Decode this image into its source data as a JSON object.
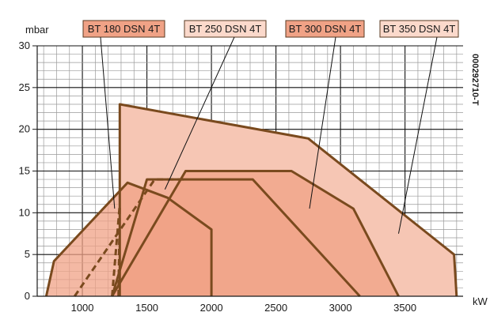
{
  "chart_data": {
    "type": "area",
    "title": "",
    "xlabel": "kW",
    "ylabel": "mbar",
    "xlim": [
      650,
      3950
    ],
    "ylim": [
      0,
      30
    ],
    "x_ticks": [
      "1000",
      "1500",
      "2000",
      "2500",
      "3000",
      "3500"
    ],
    "x_tick_values": [
      1000,
      1500,
      2000,
      2500,
      3000,
      3500
    ],
    "y_ticks": [
      "0",
      "5",
      "10",
      "15",
      "20",
      "25",
      "30"
    ],
    "y_tick_values": [
      0,
      5,
      10,
      15,
      20,
      25,
      30
    ],
    "grid": true,
    "document_code": "000292710-T",
    "colors": {
      "outline": "#7a4a1e",
      "fill_light": "#f6c6b4",
      "fill_mid": "#f0a286",
      "legend_fill_dark": "#f0a286",
      "legend_fill_light": "#fbd9cb",
      "grid": "#9a9a9a",
      "axis": "#1a1a1a"
    },
    "series": [
      {
        "name": "BT 180 DSN 4T",
        "legend_fill": "dark",
        "line_style": "solid",
        "points": [
          [
            720,
            0
          ],
          [
            780,
            4.2
          ],
          [
            1350,
            13.6
          ],
          [
            1660,
            11.8
          ],
          [
            2000,
            8.0
          ],
          [
            2000,
            0
          ]
        ],
        "leader_target": [
          1250,
          10.5
        ]
      },
      {
        "name": "BT 250 DSN 4T",
        "legend_fill": "light",
        "line_style": "dashed",
        "points": [
          [
            940,
            0
          ],
          [
            1560,
            14.0
          ],
          [
            1815,
            14.0
          ]
        ],
        "leader_target": [
          1640,
          12.8
        ]
      },
      {
        "name": "BT 300 DSN 4T",
        "legend_fill": "dark",
        "line_style": "solid",
        "points": [
          [
            1230,
            0
          ],
          [
            1500,
            14.0
          ],
          [
            2320,
            14.0
          ],
          [
            3150,
            0
          ]
        ],
        "leader_target": [
          2760,
          10.5
        ]
      },
      {
        "name": "BT 350 DSN 4T",
        "legend_fill": "light",
        "line_style": "solid",
        "points": [
          [
            1290,
            0
          ],
          [
            1290,
            23.0
          ],
          [
            2750,
            18.9
          ],
          [
            3880,
            5.0
          ],
          [
            3900,
            0
          ]
        ],
        "leader_target": [
          3450,
          7.5
        ]
      },
      {
        "name": "BT 350 DSN 4T inner",
        "legend_fill": "mid",
        "line_style": "solid",
        "points": [
          [
            1230,
            0
          ],
          [
            1800,
            15.0
          ],
          [
            2620,
            15.0
          ],
          [
            3100,
            10.5
          ],
          [
            3450,
            0
          ]
        ]
      },
      {
        "name": "BT 180 DSN 4T dashed limit",
        "line_style": "dashed",
        "points": [
          [
            1230,
            0
          ],
          [
            1290,
            11.0
          ]
        ]
      },
      {
        "name": "BT 250 DSN 4T dashed limit",
        "line_style": "dashed",
        "points": [
          [
            1280,
            0
          ],
          [
            1290,
            11.0
          ]
        ]
      }
    ],
    "legend": [
      "BT 180 DSN 4T",
      "BT 250 DSN 4T",
      "BT 300 DSN 4T",
      "BT 350 DSN 4T"
    ]
  }
}
